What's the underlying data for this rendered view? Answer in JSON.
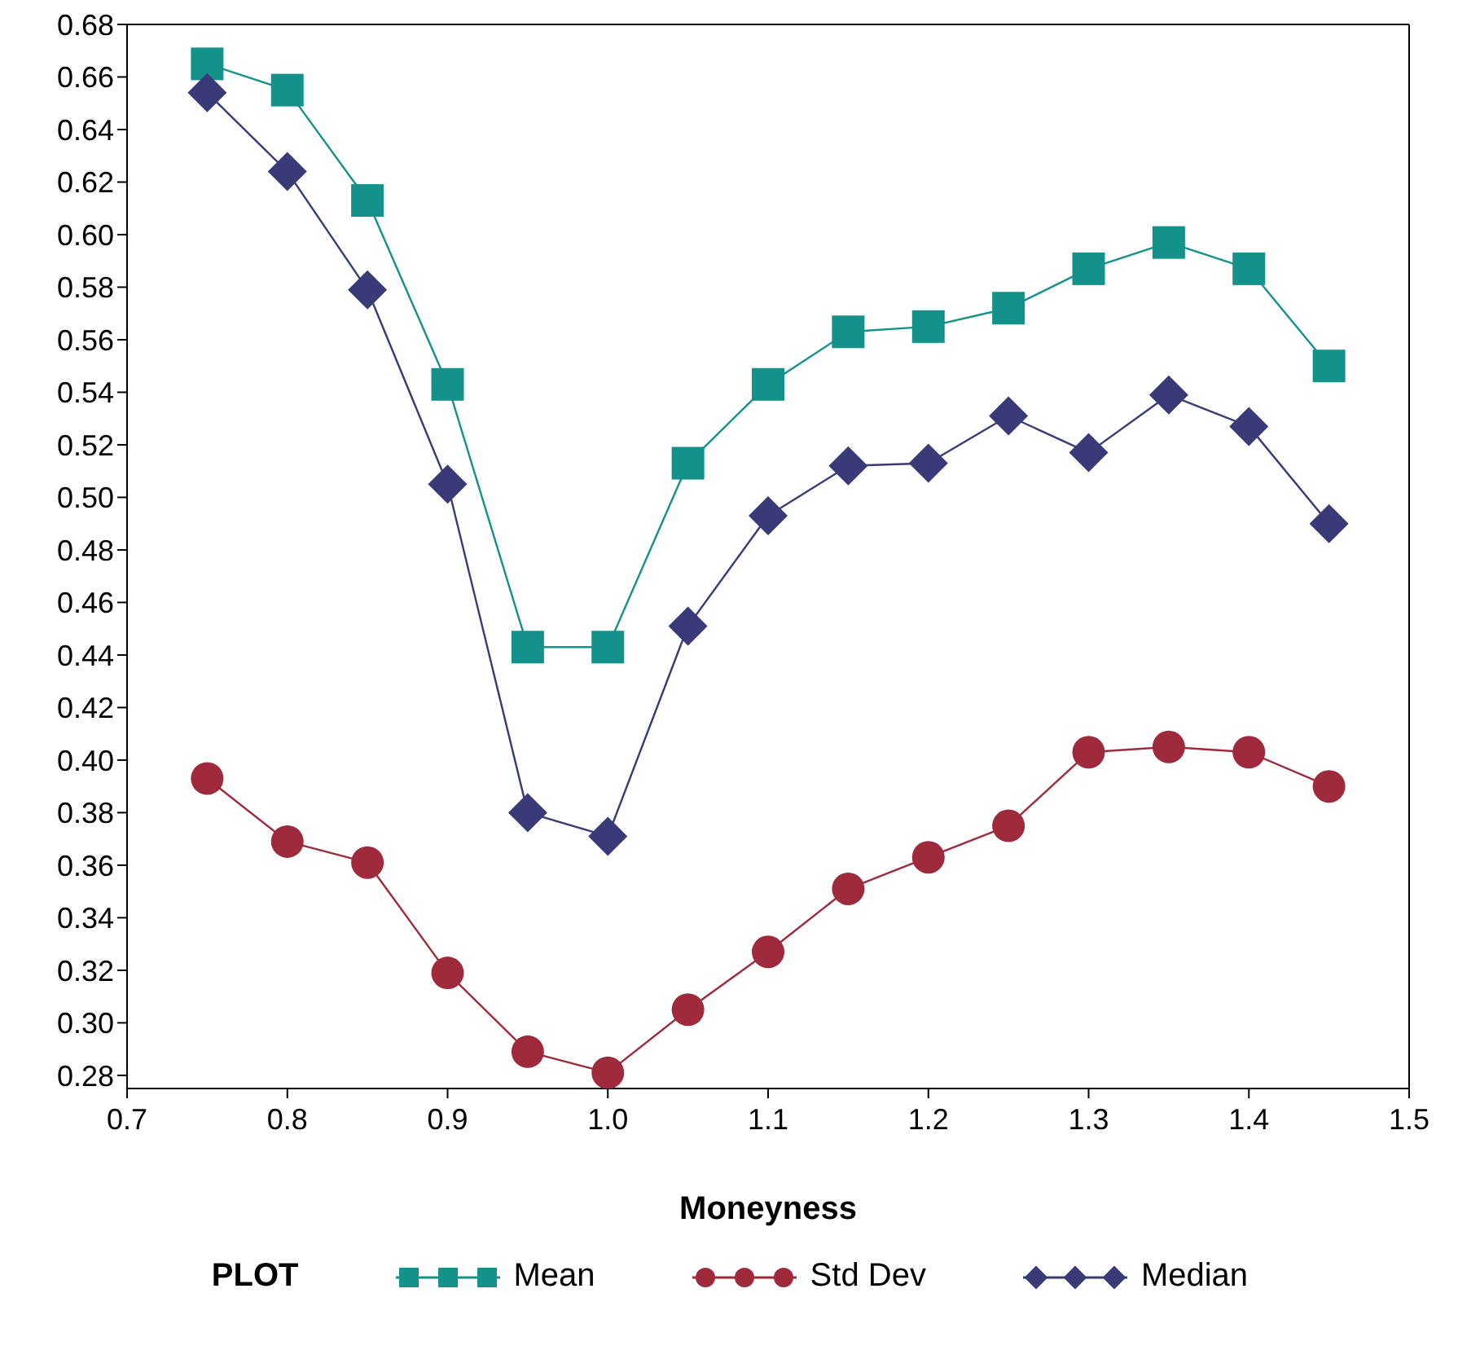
{
  "chart_data": {
    "type": "line",
    "xlabel": "Moneyness",
    "legend_title": "PLOT",
    "x": [
      0.75,
      0.8,
      0.85,
      0.9,
      0.95,
      1.0,
      1.05,
      1.1,
      1.15,
      1.2,
      1.25,
      1.3,
      1.35,
      1.4,
      1.45
    ],
    "series": [
      {
        "name": "Mean",
        "color": "#13918a",
        "marker": "square",
        "values": [
          0.665,
          0.655,
          0.613,
          0.543,
          0.443,
          0.443,
          0.513,
          0.543,
          0.563,
          0.565,
          0.572,
          0.587,
          0.597,
          0.587,
          0.55
        ]
      },
      {
        "name": "Std Dev",
        "color": "#9e2a3c",
        "marker": "circle",
        "values": [
          0.393,
          0.369,
          0.361,
          0.319,
          0.289,
          0.281,
          0.305,
          0.327,
          0.351,
          0.363,
          0.375,
          0.403,
          0.405,
          0.403,
          0.39
        ]
      },
      {
        "name": "Median",
        "color": "#3b3a78",
        "marker": "diamond",
        "values": [
          0.654,
          0.624,
          0.579,
          0.505,
          0.38,
          0.371,
          0.451,
          0.493,
          0.512,
          0.513,
          0.531,
          0.517,
          0.539,
          0.527,
          0.49
        ]
      }
    ],
    "xlim": [
      0.7,
      1.5
    ],
    "xticks": [
      0.7,
      0.8,
      0.9,
      {
        "value": 1.0,
        "label": "1.0"
      },
      1.1,
      1.2,
      1.3,
      1.4,
      1.5
    ],
    "ylim": [
      0.275,
      0.68
    ],
    "yticks": [
      0.28,
      {
        "value": 0.3,
        "label": "0.30"
      },
      0.32,
      0.34,
      0.36,
      0.38,
      {
        "value": 0.4,
        "label": "0.40"
      },
      0.42,
      0.44,
      0.46,
      0.48,
      {
        "value": 0.5,
        "label": "0.50"
      },
      0.52,
      0.54,
      0.56,
      0.58,
      {
        "value": 0.6,
        "label": "0.60"
      },
      0.62,
      0.64,
      0.66,
      0.68
    ],
    "legend": "bottom",
    "line_style": "solid"
  }
}
